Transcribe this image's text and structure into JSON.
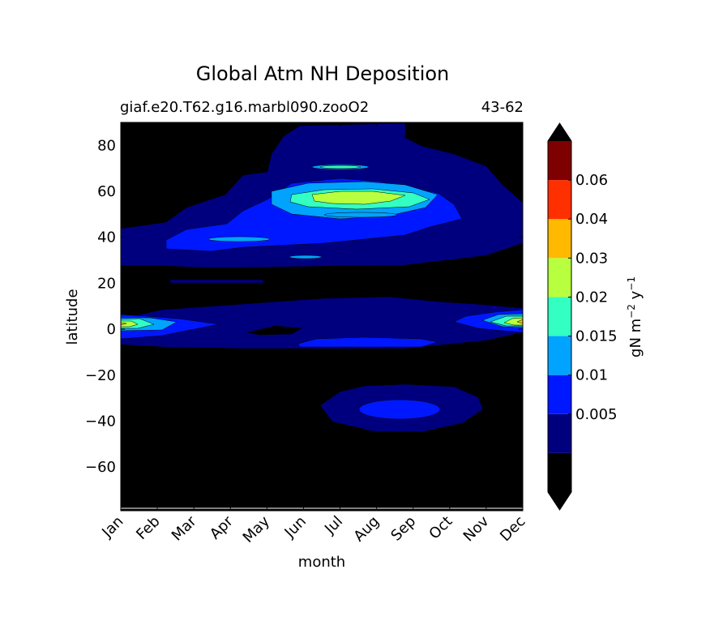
{
  "chart_data": {
    "type": "heatmap",
    "title": "Global Atm NH Deposition",
    "subtitle_left": "giaf.e20.T62.g16.marbl090.zooO2",
    "subtitle_right": "43-62",
    "xlabel": "month",
    "ylabel": "latitude",
    "x_ticks": [
      "Jan",
      "Feb",
      "Mar",
      "Apr",
      "May",
      "Jun",
      "Jul",
      "Aug",
      "Sep",
      "Oct",
      "Nov",
      "Dec"
    ],
    "y_ticks": [
      80,
      60,
      40,
      20,
      0,
      -20,
      -40,
      -60
    ],
    "y_tick_labels": [
      "80",
      "60",
      "40",
      "20",
      "0",
      "−20",
      "−40",
      "−60"
    ],
    "ylim": [
      -79,
      90
    ],
    "colorbar": {
      "label_main": "gN m",
      "label_sup1": "−2",
      "label_mid": " y",
      "label_sup2": "−1",
      "tick_labels": [
        "0.005",
        "0.01",
        "0.015",
        "0.02",
        "0.03",
        "0.04",
        "0.06"
      ],
      "levels": [
        0,
        0.0025,
        0.005,
        0.01,
        0.015,
        0.02,
        0.03,
        0.04,
        0.06,
        0.07
      ],
      "colors": [
        "#000000",
        "#00007f",
        "#0018ff",
        "#00a4ff",
        "#33ffc3",
        "#b7ff3f",
        "#ffb900",
        "#ff3000",
        "#7f0000"
      ],
      "extend": "both"
    }
  }
}
